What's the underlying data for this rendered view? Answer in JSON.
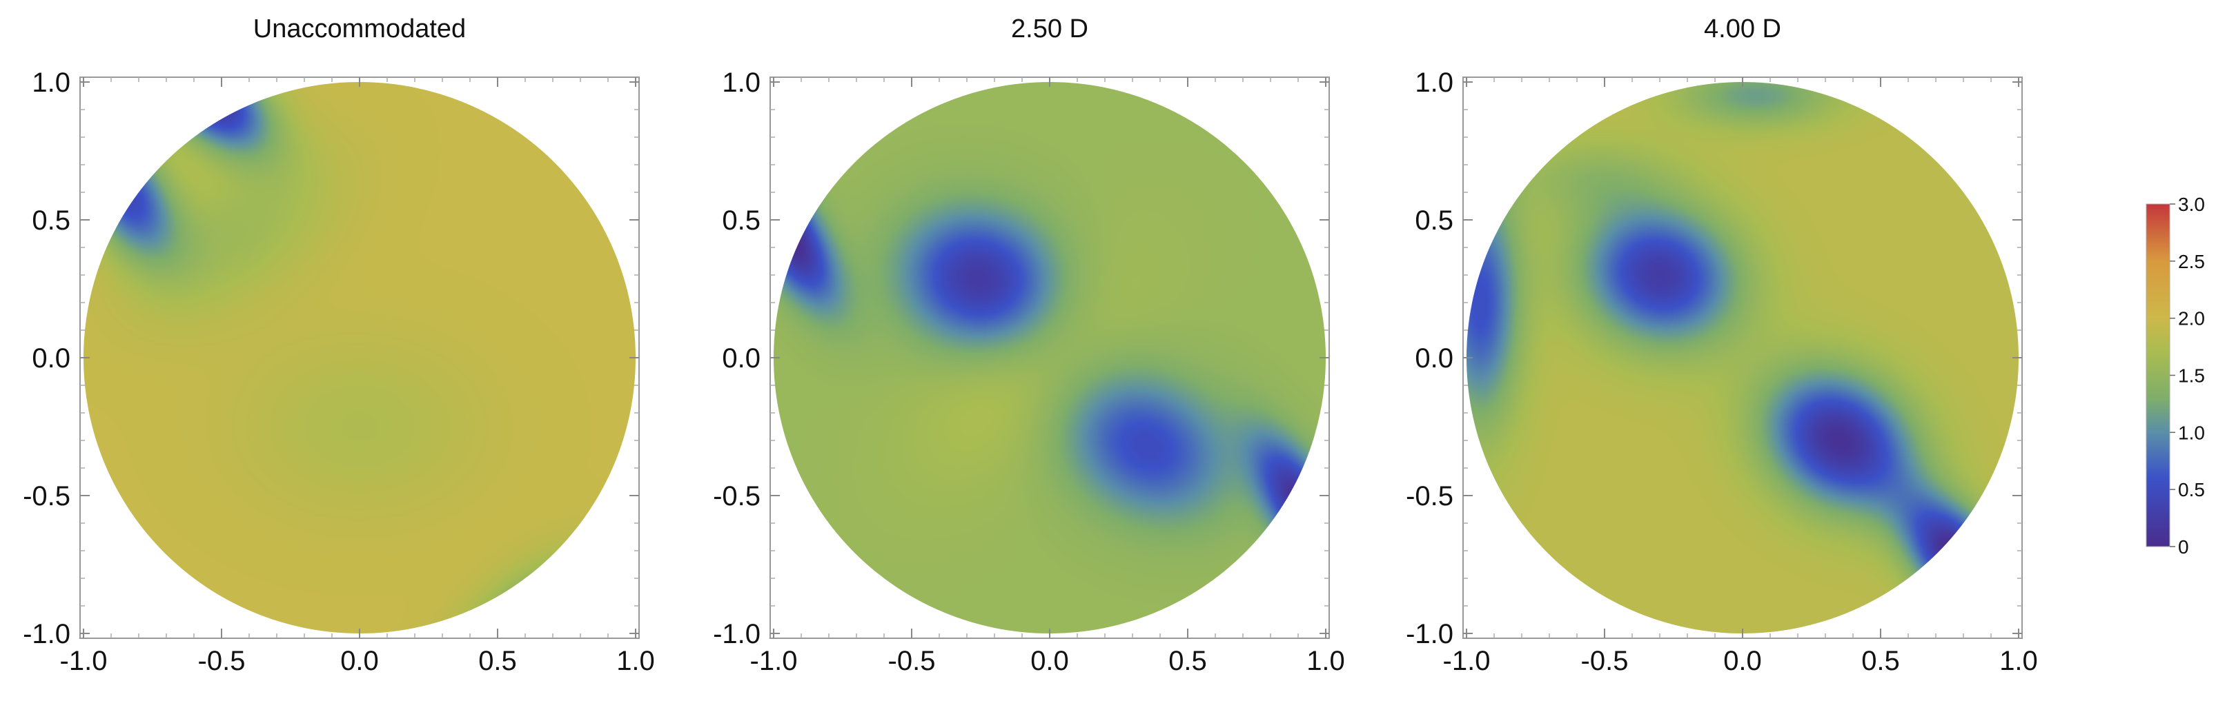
{
  "chart_data": [
    {
      "type": "heatmap",
      "title": "Unaccommodated",
      "xlim": [
        -1.0,
        1.0
      ],
      "ylim": [
        -1.0,
        1.0
      ],
      "x_ticks": [
        "-1.0",
        "-0.5",
        "0.0",
        "0.5",
        "1.0"
      ],
      "y_ticks": [
        "1.0",
        "0.5",
        "0.0",
        "-0.5",
        "-1.0"
      ],
      "x_tick_values": [
        -1.0,
        -0.5,
        0.0,
        0.5,
        1.0
      ],
      "y_tick_values": [
        1.0,
        0.5,
        0.0,
        -0.5,
        -1.0
      ],
      "domain": "unit circle",
      "field": {
        "base": 1.95,
        "bumps": [
          {
            "x": -0.45,
            "y": 0.45,
            "amp": -0.35,
            "sx": 0.28,
            "sy": 0.16,
            "angle": 35
          },
          {
            "x": 0.0,
            "y": -0.25,
            "amp": -0.2,
            "sx": 0.3,
            "sy": 0.22,
            "angle": 0
          },
          {
            "x": -0.55,
            "y": 0.95,
            "amp": -1.9,
            "sx": 0.18,
            "sy": 0.1,
            "angle": -40
          },
          {
            "x": -0.85,
            "y": 0.6,
            "amp": -1.5,
            "sx": 0.1,
            "sy": 0.18,
            "angle": 30
          },
          {
            "x": 0.6,
            "y": -0.95,
            "amp": -0.8,
            "sx": 0.2,
            "sy": 0.1,
            "angle": 40
          }
        ]
      }
    },
    {
      "type": "heatmap",
      "title": "2.50 D",
      "xlim": [
        -1.0,
        1.0
      ],
      "ylim": [
        -1.0,
        1.0
      ],
      "x_ticks": [
        "-1.0",
        "-0.5",
        "0.0",
        "0.5",
        "1.0"
      ],
      "y_ticks": [
        "1.0",
        "0.5",
        "0.0",
        "-0.5",
        "-1.0"
      ],
      "x_tick_values": [
        -1.0,
        -0.5,
        0.0,
        0.5,
        1.0
      ],
      "y_tick_values": [
        1.0,
        0.5,
        0.0,
        -0.5,
        -1.0
      ],
      "domain": "unit circle",
      "field": {
        "base": 1.55,
        "bumps": [
          {
            "x": -0.25,
            "y": 0.28,
            "amp": -1.35,
            "sx": 0.2,
            "sy": 0.17,
            "angle": -20
          },
          {
            "x": 0.35,
            "y": -0.32,
            "amp": -1.05,
            "sx": 0.22,
            "sy": 0.17,
            "angle": -30
          },
          {
            "x": -0.95,
            "y": 0.45,
            "amp": -1.6,
            "sx": 0.08,
            "sy": 0.2,
            "angle": 30
          },
          {
            "x": 0.92,
            "y": -0.55,
            "amp": -1.5,
            "sx": 0.08,
            "sy": 0.2,
            "angle": 30
          },
          {
            "x": -0.1,
            "y": -0.05,
            "amp": 0.25,
            "sx": 0.35,
            "sy": 0.18,
            "angle": 45
          }
        ]
      }
    },
    {
      "type": "heatmap",
      "title": "4.00 D",
      "xlim": [
        -1.0,
        1.0
      ],
      "ylim": [
        -1.0,
        1.0
      ],
      "x_ticks": [
        "-1.0",
        "-0.5",
        "0.0",
        "0.5",
        "1.0"
      ],
      "y_ticks": [
        "1.0",
        "0.5",
        "0.0",
        "-0.5",
        "-1.0"
      ],
      "x_tick_values": [
        -1.0,
        -0.5,
        0.0,
        0.5,
        1.0
      ],
      "y_tick_values": [
        1.0,
        0.5,
        0.0,
        -0.5,
        -1.0
      ],
      "domain": "unit circle",
      "field": {
        "base": 1.85,
        "bumps": [
          {
            "x": -0.3,
            "y": 0.3,
            "amp": -1.6,
            "sx": 0.2,
            "sy": 0.17,
            "angle": -20
          },
          {
            "x": 0.35,
            "y": -0.3,
            "amp": -1.75,
            "sx": 0.2,
            "sy": 0.16,
            "angle": -35
          },
          {
            "x": -0.95,
            "y": 0.2,
            "amp": -1.3,
            "sx": 0.1,
            "sy": 0.3,
            "angle": 0
          },
          {
            "x": 0.8,
            "y": -0.75,
            "amp": -2.0,
            "sx": 0.1,
            "sy": 0.2,
            "angle": 40
          },
          {
            "x": 0.05,
            "y": 0.95,
            "amp": -0.7,
            "sx": 0.2,
            "sy": 0.08,
            "angle": 0
          },
          {
            "x": -0.55,
            "y": 0.65,
            "amp": -0.35,
            "sx": 0.2,
            "sy": 0.1,
            "angle": 0
          }
        ]
      }
    }
  ],
  "colorbar": {
    "ticks": [
      "3.0",
      "2.5",
      "2.0",
      "1.5",
      "1.0",
      "0.5",
      "0"
    ],
    "tick_values": [
      3.0,
      2.5,
      2.0,
      1.5,
      1.0,
      0.5,
      0.0
    ],
    "range": [
      0.0,
      3.0
    ],
    "stops": [
      {
        "v": 0.0,
        "c": "#4a2d8c"
      },
      {
        "v": 0.6,
        "c": "#3b52c8"
      },
      {
        "v": 1.0,
        "c": "#5a8fa8"
      },
      {
        "v": 1.3,
        "c": "#7fae6a"
      },
      {
        "v": 1.7,
        "c": "#a9bc52"
      },
      {
        "v": 2.0,
        "c": "#cdb84a"
      },
      {
        "v": 2.5,
        "c": "#d89a3e"
      },
      {
        "v": 3.0,
        "c": "#c4363c"
      }
    ]
  }
}
